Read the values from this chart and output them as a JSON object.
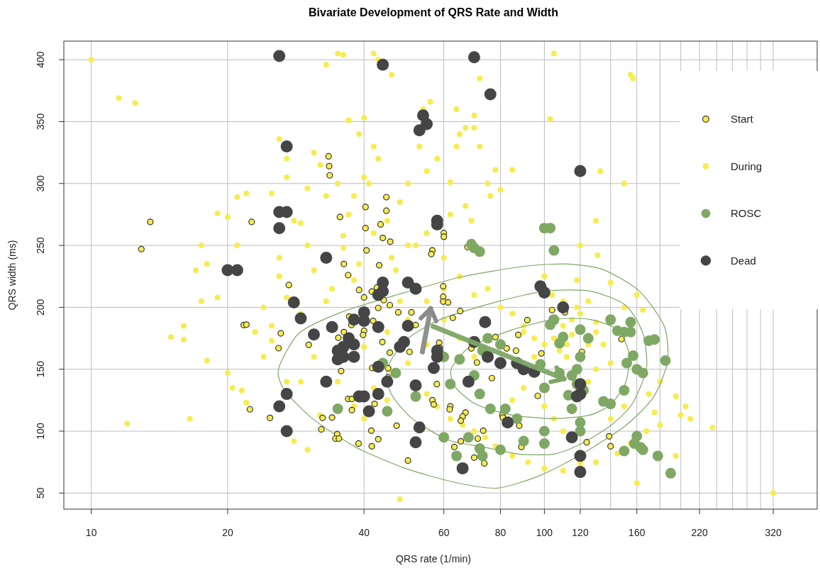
{
  "chart_data": {
    "type": "scatter",
    "title": "Bivariate Development of QRS Rate and Width",
    "xlabel": "QRS rate (1/min)",
    "ylabel": "QRS width (ms)",
    "log": "x",
    "grid": true,
    "legend": "top right",
    "marker": "circle",
    "xlim": [
      8.7,
      400
    ],
    "ylim": [
      37,
      415
    ],
    "xticks": [
      10,
      20,
      40,
      60,
      80,
      100,
      120,
      {
        "value": 140,
        "label": null
      },
      160,
      {
        "value": 180,
        "label": null
      },
      {
        "value": 200,
        "label": null
      },
      220,
      {
        "value": 240,
        "label": null
      },
      {
        "value": 260,
        "label": null
      },
      {
        "value": 280,
        "label": null
      },
      {
        "value": 300,
        "label": null
      },
      320
    ],
    "yticks": [
      50,
      100,
      150,
      200,
      250,
      300,
      350,
      400
    ],
    "series": [
      {
        "name": "Start",
        "color": "#f7ec4f",
        "x": [
          13.5,
          12.9,
          22.6,
          33.4,
          33.5,
          33.6,
          35.4,
          40.3,
          44.8,
          44.8,
          43.5,
          40.3,
          44,
          45.7,
          40.5,
          36.1,
          43.2,
          21.7,
          22,
          27.3,
          26.2,
          25.9,
          22.4,
          24.8,
          30.2,
          37.1,
          37.5,
          36.1,
          35.1,
          35.6,
          36.9,
          37.6,
          37.6,
          34,
          32.4,
          32.2,
          34.9,
          34.6,
          35.2,
          38.9,
          41.6,
          41.5,
          43,
          42.2,
          41.7,
          36.9,
          39,
          40,
          41.6,
          42.7,
          44.2,
          43,
          45.6,
          47.6,
          41.9,
          40,
          39.8,
          43.9,
          45.6,
          45.2,
          45.2,
          47.2,
          59.8,
          59.8,
          59.8,
          61.3,
          50.9,
          52,
          50.4,
          58.6,
          58.8,
          62.8,
          65.2,
          91.7,
          104,
          111,
          104,
          87.6,
          78,
          69,
          82.6,
          86.6,
          98.5,
          121,
          71,
          76.6,
          57.9,
          96.7,
          56.6,
          57,
          62,
          61.8,
          67,
          66,
          65.4,
          80.8,
          81,
          88,
          73.3,
          71.3,
          63.3,
          65.4,
          70,
          73.7,
          50,
          89,
          124,
          139,
          140,
          148,
          67.7,
          60,
          60,
          56.6,
          56.3
        ],
        "values": [
          269,
          247,
          269,
          322,
          314,
          306.6,
          273,
          281,
          289,
          278,
          267,
          264,
          256,
          253,
          246,
          235,
          234,
          185.7,
          186,
          218,
          179,
          167,
          117.6,
          110.7,
          169.7,
          192.6,
          185.7,
          180,
          175.4,
          148.5,
          126,
          126,
          117,
          111,
          110.7,
          101.5,
          97.5,
          94,
          94,
          90,
          87.8,
          100.4,
          93.5,
          122,
          151,
          226,
          214,
          208,
          212.7,
          216,
          205.8,
          199.5,
          201.8,
          196,
          189,
          181,
          177.7,
          172,
          163.4,
          150.8,
          143.4,
          104.4,
          217,
          208.6,
          204.6,
          204,
          196,
          185.7,
          164,
          171.4,
          167.4,
          191.5,
          197,
          189.7,
          197.8,
          196,
          191,
          177.7,
          176,
          166.8,
          166.8,
          165,
          162.8,
          164,
          155.4,
          142.8,
          138,
          128.5,
          125,
          121.6,
          120,
          117.6,
          115,
          111.8,
          108.4,
          113,
          111,
          104.4,
          100.4,
          94,
          87.2,
          91.8,
          78.6,
          74,
          76.3,
          87.2,
          91,
          95.8,
          87.8,
          174.3,
          248.7,
          260,
          257,
          246,
          243
        ]
      },
      {
        "name": "During",
        "color": "#f7ec4f",
        "x": [
          10,
          11.5,
          12.5,
          12,
          15,
          16,
          16,
          16.5,
          17,
          17.5,
          18,
          18,
          17.5,
          19,
          19,
          20,
          20,
          21,
          22,
          21,
          20.5,
          21.5,
          22,
          23,
          24,
          25,
          24,
          25,
          26,
          27,
          27,
          25,
          26,
          28,
          26,
          27,
          29,
          30,
          33,
          31,
          32,
          33,
          30,
          31,
          33,
          34,
          29,
          31,
          29,
          27,
          28,
          30,
          32,
          35,
          36,
          42,
          43,
          46,
          37,
          39,
          40,
          42,
          43,
          40,
          35,
          38,
          41,
          37,
          36,
          36,
          39,
          38,
          42,
          45,
          48,
          50,
          47,
          46,
          54,
          56,
          53,
          55,
          58,
          50,
          62,
          64,
          65,
          67,
          70,
          72,
          70,
          64,
          72,
          75,
          78,
          85,
          80,
          76,
          103,
          105,
          155,
          157,
          150,
          133,
          120,
          118,
          131,
          130,
          67,
          69,
          62,
          60,
          55,
          52,
          65,
          70,
          60,
          55,
          48,
          45,
          40,
          35,
          38,
          42,
          46,
          50,
          55,
          58,
          62,
          66,
          70,
          74,
          78,
          85,
          92,
          100,
          110,
          120,
          130,
          145,
          160,
          155,
          168,
          175,
          180,
          195,
          200,
          210,
          205,
          235,
          320,
          150,
          160,
          165,
          140,
          125,
          110,
          115,
          112,
          95,
          90,
          85,
          80,
          75,
          100,
          104,
          95,
          90,
          85,
          100,
          105,
          110,
          130,
          135,
          140,
          130,
          125,
          140,
          150,
          170,
          180,
          195,
          60,
          65,
          70,
          55,
          50,
          45,
          40,
          48,
          50,
          115,
          118,
          112,
          108,
          105,
          100,
          95,
          90,
          125,
          130,
          120,
          110
        ],
        "values": [
          400,
          369,
          365,
          106,
          176,
          174,
          185,
          110,
          230,
          250,
          235,
          157,
          205,
          208,
          276,
          273,
          147,
          289,
          292,
          250,
          135,
          133,
          123,
          180,
          200,
          185,
          160,
          173,
          336,
          320,
          305,
          292,
          240,
          270,
          225,
          208,
          268,
          296,
          396,
          325,
          315,
          290,
          250,
          230,
          205,
          215,
          195,
          160,
          140,
          140,
          92,
          85,
          113,
          405,
          404,
          405,
          400,
          388,
          351,
          340,
          353,
          330,
          320,
          305,
          300,
          290,
          300,
          275,
          258,
          248,
          235,
          222,
          260,
          270,
          285,
          250,
          230,
          240,
          360,
          366,
          330,
          310,
          320,
          300,
          301,
          330,
          340,
          345,
          345,
          330,
          355,
          360,
          385,
          300,
          311,
          311,
          295,
          290,
          352,
          405,
          388,
          385,
          300,
          310,
          250,
          222,
          242,
          270,
          282,
          270,
          275,
          240,
          260,
          250,
          225,
          210,
          215,
          205,
          205,
          180,
          168,
          140,
          120,
          135,
          148,
          155,
          130,
          120,
          110,
          105,
          100,
          95,
          88,
          80,
          75,
          70,
          68,
          74,
          75,
          82,
          58,
          90,
          100,
          115,
          105,
          80,
          113,
          110,
          120,
          103,
          50,
          200,
          210,
          198,
          220,
          205,
          185,
          178,
          170,
          175,
          180,
          195,
          200,
          215,
          225,
          210,
          145,
          135,
          125,
          120,
          110,
          100,
          180,
          170,
          155,
          150,
          140,
          110,
          120,
          130,
          140,
          128,
          190,
          175,
          160,
          170,
          190,
          125,
          110,
          45,
          76,
          190,
          200,
          160,
          165,
          175,
          170,
          160,
          185,
          170,
          188,
          195,
          205
        ]
      },
      {
        "name": "ROSC",
        "color": "#7fa865",
        "x": [
          100,
          103,
          105,
          69,
          70,
          72,
          140,
          145,
          150,
          155,
          157,
          152,
          160,
          165,
          185,
          170,
          175,
          120,
          125,
          120,
          118,
          115,
          118,
          122,
          135,
          140,
          150,
          160,
          158,
          163,
          165,
          150,
          178,
          190,
          115,
          120,
          100,
          100,
          75,
          73,
          60,
          80,
          65,
          70,
          62,
          72,
          76,
          82,
          68,
          72,
          73,
          60,
          64,
          52,
          47,
          44,
          35,
          45,
          80,
          90,
          87,
          120,
          100,
          113,
          108,
          98,
          105,
          103,
          155,
          110,
          108
        ],
        "values": [
          264,
          264,
          246,
          251,
          248,
          245,
          190,
          181,
          180,
          188,
          161,
          155,
          150,
          147,
          157,
          173,
          174,
          182,
          175,
          160,
          150,
          145,
          138,
          133,
          124,
          122,
          133,
          96,
          90,
          87,
          85,
          84,
          80,
          66,
          118,
          107,
          100,
          90,
          175,
          165,
          160,
          170,
          158,
          145,
          138,
          130,
          118,
          118,
          95,
          86,
          80,
          95,
          80,
          128,
          147,
          155,
          118,
          116,
          85,
          92,
          110,
          100,
          135,
          129,
          147,
          154,
          190,
          186,
          180,
          176,
          171
        ]
      },
      {
        "name": "Dead",
        "color": "#454545",
        "x": [
          26,
          70,
          44,
          76,
          54,
          55,
          53,
          27,
          120,
          26,
          27,
          26,
          58,
          58,
          20,
          21,
          33,
          44,
          44,
          50,
          52,
          43,
          98,
          100,
          110,
          28,
          40,
          29,
          34,
          31,
          43,
          40,
          38,
          37,
          36,
          35,
          38,
          36,
          35,
          38,
          43,
          49,
          50,
          58,
          58,
          48,
          74,
          70,
          57,
          52,
          45,
          43,
          33,
          39,
          40,
          41,
          26,
          27,
          27,
          53,
          52,
          66,
          75,
          80,
          87,
          90,
          95,
          120,
          120,
          118,
          115,
          120,
          120,
          68,
          83
        ],
        "values": [
          403,
          402,
          396,
          372,
          355,
          348,
          343,
          330,
          310,
          277,
          277,
          264,
          270,
          267,
          230,
          230,
          240,
          220,
          213,
          220,
          215,
          210,
          217,
          212,
          200,
          204,
          196,
          191,
          184,
          178,
          184,
          189,
          190,
          175,
          168,
          165,
          170,
          160,
          158,
          160,
          152,
          172,
          185,
          165,
          160,
          168,
          188,
          172,
          151,
          137,
          140,
          130,
          140,
          128,
          128,
          116,
          120,
          130,
          100,
          103,
          91,
          70,
          160,
          155,
          155,
          150,
          148,
          138,
          130,
          128,
          95,
          80,
          67,
          140,
          107
        ]
      },
      {
        "type": "line",
        "marker": "none",
        "color": "#8a8a8a",
        "x": [
          53.8,
          56.1
        ],
        "values": [
          164,
          199
        ]
      },
      {
        "type": "line",
        "marker": "none",
        "color": "#7ea566",
        "x": [
          56.8,
          110.6
        ],
        "values": [
          184.6,
          142.2
        ]
      }
    ]
  }
}
